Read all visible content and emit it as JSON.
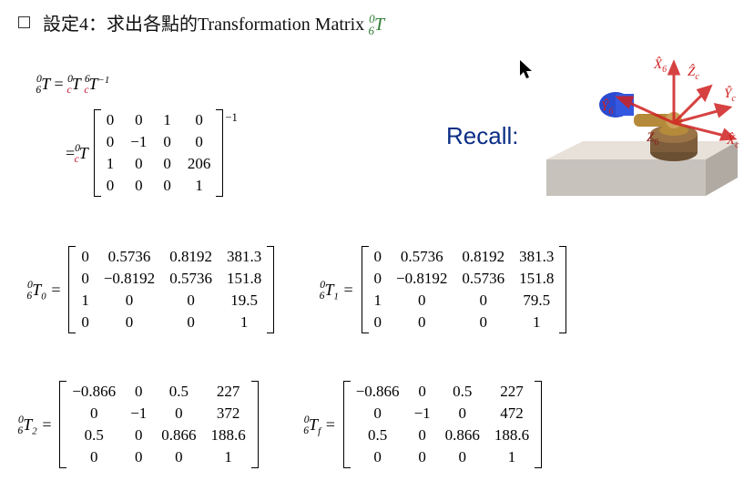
{
  "heading": {
    "bullet": "□",
    "text_prefix": "設定4：求出各點的Transformation Matrix ",
    "presup": "0",
    "presub": "6",
    "T": "T"
  },
  "eq1": {
    "lhs_presup": "0",
    "lhs_presub": "6",
    "lhs_T": "T",
    "equals": " = ",
    "r1_presup": "0",
    "r1_presub": "c",
    "r1_T": "T",
    "r2_presup": "6",
    "r2_presub": "c",
    "r2_T": "T",
    "inv": "−1"
  },
  "eq2": {
    "equals": "= ",
    "presup": "0",
    "presub": "c",
    "T": "T",
    "matrix": [
      [
        "0",
        "0",
        "1",
        "0"
      ],
      [
        "0",
        "−1",
        "0",
        "0"
      ],
      [
        "1",
        "0",
        "0",
        "206"
      ],
      [
        "0",
        "0",
        "0",
        "1"
      ]
    ],
    "inv": "−1"
  },
  "recall": "Recall:",
  "cursor_glyph": "➤",
  "robot_labels": {
    "X6": "X̂",
    "X6s": "6",
    "Zc": "Ẑ",
    "Zcs": "c",
    "Yc": "Ŷ",
    "Ycs": "c",
    "Y6": "Ŷ",
    "Y6s": "6",
    "Z6": "Z",
    "Z6s": "6",
    "Xc": "X̂",
    "Xcs": "c"
  },
  "T0": {
    "label_presup": "0",
    "label_presub": "6",
    "label_T": "T",
    "label_sub": "0",
    "matrix": [
      [
        "0",
        "0.5736",
        "0.8192",
        "381.3"
      ],
      [
        "0",
        "−0.8192",
        "0.5736",
        "151.8"
      ],
      [
        "1",
        "0",
        "0",
        "19.5"
      ],
      [
        "0",
        "0",
        "0",
        "1"
      ]
    ]
  },
  "T1": {
    "label_presup": "0",
    "label_presub": "6",
    "label_T": "T",
    "label_sub": "1",
    "matrix": [
      [
        "0",
        "0.5736",
        "0.8192",
        "381.3"
      ],
      [
        "0",
        "−0.8192",
        "0.5736",
        "151.8"
      ],
      [
        "1",
        "0",
        "0",
        "79.5"
      ],
      [
        "0",
        "0",
        "0",
        "1"
      ]
    ]
  },
  "T2": {
    "label_presup": "0",
    "label_presub": "6",
    "label_T": "T",
    "label_sub": "2",
    "matrix": [
      [
        "−0.866",
        "0",
        "0.5",
        "227"
      ],
      [
        "0",
        "−1",
        "0",
        "372"
      ],
      [
        "0.5",
        "0",
        "0.866",
        "188.6"
      ],
      [
        "0",
        "0",
        "0",
        "1"
      ]
    ]
  },
  "Tf": {
    "label_presup": "0",
    "label_presub": "6",
    "label_T": "T",
    "label_sub": "f",
    "matrix": [
      [
        "−0.866",
        "0",
        "0.5",
        "227"
      ],
      [
        "0",
        "−1",
        "0",
        "472"
      ],
      [
        "0.5",
        "0",
        "0.866",
        "188.6"
      ],
      [
        "0",
        "0",
        "0",
        "1"
      ]
    ]
  },
  "colors": {
    "red": "#c8102e",
    "green": "#2e7d32",
    "blue": "#0b2e85",
    "gold": "#b58a3a",
    "dark_red": "#8a1c1c",
    "table_gray": "#c8c2bd",
    "table_top": "#e7e1d9",
    "robot_blue": "#2a4bd0"
  }
}
